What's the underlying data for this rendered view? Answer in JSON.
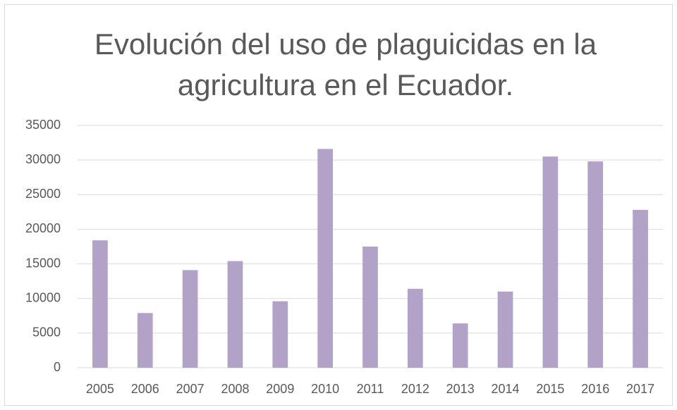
{
  "chart_data": {
    "type": "bar",
    "title": "Evolución del uso de plaguicidas en la agricultura en el Ecuador.",
    "categories": [
      "2005",
      "2006",
      "2007",
      "2008",
      "2009",
      "2010",
      "2011",
      "2012",
      "2013",
      "2014",
      "2015",
      "2016",
      "2017"
    ],
    "values": [
      18400,
      7900,
      14100,
      15400,
      9600,
      31600,
      17500,
      11400,
      6400,
      11000,
      30500,
      29800,
      22800
    ],
    "color": "#b3a2c7",
    "ylim": [
      0,
      35000
    ],
    "yticks": [
      0,
      5000,
      10000,
      15000,
      20000,
      25000,
      30000,
      35000
    ],
    "grid": true
  }
}
